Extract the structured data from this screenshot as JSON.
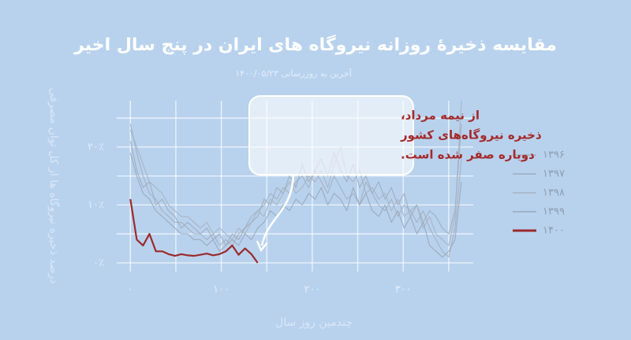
{
  "chart_data": {
    "type": "line",
    "title": "مقایسه ذخیرهٔ روزانه نیروگاه های ایران در پنج سال اخیر",
    "subtitle": "آخرین به روزرسانی ۱۴۰۰/۰۵/۲۳",
    "y_label": "درصد ذخیره نیروگاه ها از کل توان مصرفی",
    "x_label": "چندمین روز سال",
    "annotation": [
      "از نیمه مرداد،",
      "ذخیره نیروگاه‌های کشور",
      "دوباره صفر شده است."
    ],
    "xlim": [
      -15,
      377
    ],
    "ylim": [
      -1.5,
      28
    ],
    "xticks": [
      {
        "value": 0,
        "label": "۰"
      },
      {
        "value": 100,
        "label": "۱۰۰"
      },
      {
        "value": 200,
        "label": "۲۰۰"
      },
      {
        "value": 300,
        "label": "۳۰۰"
      }
    ],
    "yticks": [
      {
        "value": 0,
        "label": "۰٪"
      },
      {
        "value": 10,
        "label": "۱۰٪"
      },
      {
        "value": 20,
        "label": "۲۰٪"
      }
    ],
    "x_minor_ticks": [
      50,
      150,
      250,
      350
    ],
    "y_minor_ticks": [
      5,
      15,
      25
    ],
    "grid": true,
    "legend": "right",
    "x": [
      0,
      7,
      14,
      21,
      28,
      35,
      42,
      49,
      56,
      63,
      70,
      77,
      84,
      91,
      98,
      105,
      112,
      119,
      126,
      133,
      140,
      147,
      154,
      161,
      168,
      175,
      182,
      189,
      196,
      203,
      210,
      217,
      224,
      231,
      238,
      245,
      252,
      259,
      266,
      273,
      280,
      287,
      294,
      301,
      308,
      315,
      322,
      329,
      336,
      343,
      350,
      357,
      364
    ],
    "series": [
      {
        "name": "۱۳۹۶",
        "color": "#a3afbd",
        "values": [
          24,
          19,
          15,
          12,
          11,
          9,
          8,
          7,
          7,
          6,
          5,
          5,
          4,
          5,
          3,
          4,
          3,
          5,
          6,
          8,
          9,
          10,
          12,
          11,
          13,
          12,
          14,
          15,
          13,
          16,
          14,
          12,
          15,
          13,
          11,
          12,
          10,
          14,
          12,
          10,
          9,
          11,
          8,
          10,
          9,
          7,
          9,
          6,
          4,
          2,
          1,
          6,
          18
        ]
      },
      {
        "name": "۱۳۹۷",
        "color": "#9eabba",
        "values": [
          21,
          16,
          13,
          14,
          10,
          11,
          9,
          8,
          6,
          7,
          6,
          5,
          6,
          4,
          5,
          3,
          5,
          4,
          6,
          7,
          8,
          11,
          10,
          13,
          12,
          15,
          13,
          17,
          14,
          16,
          18,
          15,
          19,
          16,
          14,
          17,
          13,
          15,
          12,
          14,
          11,
          13,
          10,
          12,
          8,
          10,
          7,
          9,
          8,
          6,
          5,
          9,
          24
        ]
      },
      {
        "name": "۱۳۹۸",
        "color": "#a8b3c0",
        "values": [
          23,
          20,
          17,
          14,
          13,
          12,
          10,
          9,
          8,
          8,
          7,
          6,
          7,
          5,
          6,
          5,
          4,
          6,
          5,
          7,
          9,
          8,
          11,
          10,
          12,
          14,
          12,
          13,
          15,
          14,
          16,
          13,
          17,
          20,
          15,
          14,
          16,
          12,
          13,
          11,
          12,
          9,
          11,
          8,
          9,
          10,
          6,
          8,
          5,
          4,
          3,
          8,
          28
        ]
      },
      {
        "name": "۱۳۹۹",
        "color": "#99a7b8",
        "values": [
          19,
          15,
          12,
          11,
          9,
          8,
          7,
          6,
          5,
          5,
          4,
          4,
          3,
          4,
          2,
          3,
          4,
          3,
          5,
          4,
          6,
          7,
          9,
          8,
          10,
          9,
          11,
          10,
          12,
          11,
          13,
          10,
          12,
          11,
          9,
          13,
          10,
          12,
          9,
          8,
          10,
          7,
          9,
          6,
          8,
          5,
          7,
          3,
          2,
          1,
          2,
          4,
          14
        ]
      },
      {
        "name": "۱۴۰۰",
        "color": "#9b2a2a",
        "values": [
          11,
          4,
          3,
          5,
          2,
          2,
          1.5,
          1.2,
          1.5,
          1.3,
          1.2,
          1.4,
          1.6,
          1.3,
          1.5,
          2,
          3,
          1.4,
          2.5,
          1.5,
          0,
          null,
          null,
          null,
          null,
          null,
          null,
          null,
          null,
          null,
          null,
          null,
          null,
          null,
          null,
          null,
          null,
          null,
          null,
          null,
          null,
          null,
          null,
          null,
          null,
          null,
          null,
          null,
          null,
          null,
          null,
          null,
          null
        ]
      }
    ]
  }
}
